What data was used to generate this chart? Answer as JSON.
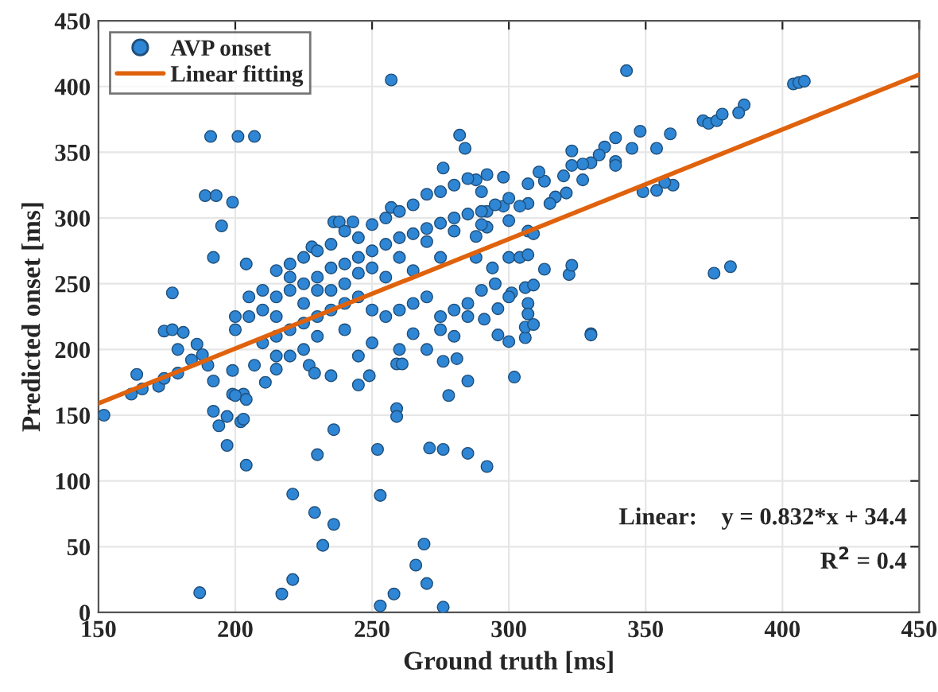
{
  "chart_data": {
    "type": "scatter",
    "xlabel": "Ground truth [ms]",
    "ylabel": "Predicted onset [ms]",
    "xlim": [
      150,
      450
    ],
    "xticks": [
      150,
      200,
      250,
      300,
      350,
      400,
      450
    ],
    "ylim": [
      0,
      450
    ],
    "yticks": [
      0,
      50,
      100,
      150,
      200,
      250,
      300,
      350,
      400,
      450
    ],
    "grid": true,
    "legend": "top left",
    "series": [
      {
        "name": "AVP onset",
        "marker": "circle",
        "color": "#2e86d4",
        "x": [
          257,
          191,
          201,
          207,
          189,
          193,
          199,
          195,
          192,
          282,
          284,
          276,
          177,
          174,
          177,
          181,
          236,
          238,
          243,
          257,
          228,
          204,
          152,
          187,
          217,
          221,
          221,
          229,
          236,
          232,
          230,
          236,
          204,
          197,
          192,
          194,
          197,
          202,
          203,
          199,
          203,
          204,
          200,
          211,
          252,
          253,
          259,
          259,
          253,
          258,
          269,
          266,
          270,
          276,
          271,
          276,
          285,
          292,
          278,
          245,
          285,
          249,
          259,
          261,
          281,
          276,
          227,
          229,
          235,
          164,
          162,
          166,
          172,
          174,
          179,
          179,
          186,
          184,
          188,
          190,
          192,
          199,
          207,
          215,
          330,
          302,
          300,
          296,
          306,
          343,
          404,
          406,
          408,
          386,
          384,
          371,
          373,
          376,
          378,
          375,
          381,
          359,
          354,
          348,
          345,
          339,
          335,
          339,
          339,
          333,
          330,
          327,
          323,
          323,
          320,
          313,
          311,
          307,
          360,
          357,
          354,
          349,
          327,
          321,
          317,
          315,
          307,
          304,
          298,
          292,
          292,
          298,
          288,
          292,
          288,
          307,
          309,
          288,
          294,
          300,
          304,
          307,
          313,
          322,
          323,
          306,
          309,
          301,
          307,
          307,
          296,
          291,
          306,
          309,
          330,
          200,
          205,
          210,
          215,
          220,
          225,
          230,
          235,
          240,
          245,
          250,
          255,
          260,
          265,
          270,
          275,
          280,
          285,
          290,
          295,
          300,
          210,
          215,
          220,
          225,
          230,
          235,
          240,
          245,
          250,
          255,
          260,
          265,
          270,
          275,
          280,
          285,
          290,
          295,
          300,
          275,
          280,
          265,
          250,
          240,
          230,
          220,
          225,
          215,
          245,
          260,
          270,
          285,
          215,
          220,
          225,
          230,
          235,
          240,
          245,
          250,
          255,
          260,
          265,
          270,
          275,
          280,
          285,
          290,
          250,
          240,
          230,
          220,
          210,
          205,
          200,
          260,
          270,
          280,
          290,
          300,
          265,
          255,
          275,
          245,
          235,
          225,
          215
        ],
        "values": [
          405,
          362,
          362,
          362,
          317,
          317,
          312,
          294,
          270,
          363,
          353,
          338,
          243,
          214,
          215,
          213,
          297,
          297,
          297,
          308,
          278,
          265,
          150,
          15,
          14,
          25,
          90,
          76,
          67,
          51,
          120,
          139,
          112,
          127,
          153,
          142,
          149,
          145,
          147,
          166,
          166,
          162,
          165,
          175,
          124,
          89,
          155,
          149,
          5,
          14,
          52,
          36,
          22,
          4,
          125,
          124,
          121,
          111,
          165,
          173,
          176,
          180,
          189,
          189,
          193,
          191,
          188,
          182,
          180,
          181,
          166,
          170,
          172,
          178,
          182,
          200,
          204,
          192,
          196,
          188,
          176,
          184,
          188,
          195,
          212,
          179,
          206,
          211,
          209,
          412,
          402,
          403,
          404,
          386,
          380,
          374,
          372,
          374,
          379,
          258,
          263,
          364,
          353,
          366,
          353,
          361,
          354,
          343,
          340,
          348,
          342,
          341,
          351,
          340,
          332,
          328,
          335,
          326,
          325,
          327,
          321,
          320,
          329,
          319,
          316,
          311,
          311,
          309,
          309,
          305,
          333,
          331,
          329,
          293,
          286,
          290,
          288,
          270,
          262,
          270,
          270,
          272,
          261,
          257,
          264,
          247,
          249,
          243,
          235,
          227,
          231,
          223,
          217,
          219,
          211,
          215,
          225,
          230,
          240,
          245,
          250,
          255,
          262,
          265,
          270,
          275,
          280,
          285,
          288,
          292,
          296,
          300,
          303,
          305,
          310,
          315,
          205,
          210,
          215,
          220,
          225,
          230,
          235,
          240,
          230,
          225,
          230,
          235,
          240,
          225,
          230,
          235,
          245,
          250,
          240,
          215,
          210,
          212,
          205,
          215,
          210,
          195,
          200,
          185,
          195,
          200,
          200,
          225,
          260,
          265,
          270,
          275,
          280,
          290,
          285,
          295,
          300,
          305,
          310,
          318,
          320,
          325,
          330,
          320,
          262,
          250,
          245,
          255,
          245,
          240,
          225,
          270,
          282,
          290,
          295,
          298,
          260,
          255,
          270,
          258,
          245,
          235,
          225
        ]
      },
      {
        "name": "Linear fitting",
        "type": "line",
        "color": "#e0620d",
        "x": [
          150,
          450
        ],
        "values": [
          159,
          409
        ]
      }
    ],
    "annotations": [
      "Linear:    y = 0.832*x + 34.4",
      "R$^{2}$ = 0.4"
    ]
  }
}
